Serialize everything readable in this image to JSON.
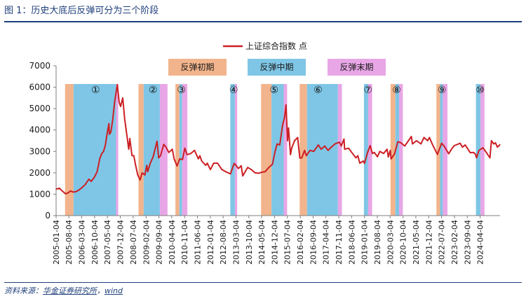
{
  "figure_title": "图 1：历史大底后反弹可分为三个阶段",
  "source": {
    "label": "资料来源：",
    "link1": "华金证券研究所",
    "sep": "，",
    "link2": "wind"
  },
  "colors": {
    "line": "#cc1f24",
    "early": "#f2b48c",
    "mid": "#7fc6e6",
    "late": "#e8a6e6",
    "axis": "#7f7f7f",
    "text": "#1a1a1a"
  },
  "chart_data": {
    "type": "line",
    "title": "",
    "xlabel": "",
    "ylabel": "",
    "ylim": [
      0,
      7000
    ],
    "yticks": [
      0,
      1000,
      2000,
      3000,
      4000,
      5000,
      6000,
      7000
    ],
    "xlim": [
      "2005-01-04",
      "2025-02-28"
    ],
    "x_tick_labels": [
      "2005-01-04",
      "2005-08-04",
      "2006-03-04",
      "2006-10-04",
      "2007-05-04",
      "2007-12-04",
      "2008-07-04",
      "2009-02-04",
      "2009-09-04",
      "2010-04-04",
      "2010-11-04",
      "2011-06-04",
      "2012-01-04",
      "2012-08-04",
      "2013-03-04",
      "2013-10-04",
      "2014-05-04",
      "2014-12-04",
      "2015-07-04",
      "2016-02-04",
      "2016-09-04",
      "2017-04-04",
      "2017-11-04",
      "2018-06-04",
      "2019-01-04",
      "2019-08-04",
      "2020-03-04",
      "2020-10-04",
      "2021-05-04",
      "2021-12-04",
      "2022-07-04",
      "2023-02-04",
      "2023-09-04",
      "2024-04-04"
    ],
    "legend": {
      "position": "top-center",
      "series_label": "上证综合指数 点",
      "phase_labels": [
        "反弹初期",
        "反弹中期",
        "反弹末期"
      ]
    },
    "series": [
      {
        "name": "上证综合指数 点",
        "points": [
          [
            "2005-01-04",
            1240
          ],
          [
            "2005-03-01",
            1280
          ],
          [
            "2005-04-15",
            1150
          ],
          [
            "2005-06-06",
            1020
          ],
          [
            "2005-07-15",
            1050
          ],
          [
            "2005-09-01",
            1150
          ],
          [
            "2005-10-15",
            1100
          ],
          [
            "2005-12-01",
            1120
          ],
          [
            "2006-01-10",
            1180
          ],
          [
            "2006-03-01",
            1290
          ],
          [
            "2006-05-01",
            1450
          ],
          [
            "2006-07-01",
            1700
          ],
          [
            "2006-08-10",
            1600
          ],
          [
            "2006-10-01",
            1800
          ],
          [
            "2006-11-15",
            2050
          ],
          [
            "2006-12-31",
            2680
          ],
          [
            "2007-02-01",
            2900
          ],
          [
            "2007-03-01",
            3000
          ],
          [
            "2007-04-01",
            3300
          ],
          [
            "2007-05-01",
            3850
          ],
          [
            "2007-05-29",
            4300
          ],
          [
            "2007-06-05",
            3800
          ],
          [
            "2007-07-01",
            3900
          ],
          [
            "2007-08-01",
            4500
          ],
          [
            "2007-09-01",
            5300
          ],
          [
            "2007-10-16",
            6124
          ],
          [
            "2007-11-15",
            5300
          ],
          [
            "2007-12-10",
            5100
          ],
          [
            "2008-01-14",
            5500
          ],
          [
            "2008-02-15",
            4500
          ],
          [
            "2008-03-15",
            3900
          ],
          [
            "2008-04-22",
            3100
          ],
          [
            "2008-05-10",
            3600
          ],
          [
            "2008-06-15",
            2800
          ],
          [
            "2008-07-15",
            2800
          ],
          [
            "2008-08-15",
            2350
          ],
          [
            "2008-09-18",
            1900
          ],
          [
            "2008-10-28",
            1665
          ],
          [
            "2008-12-01",
            2000
          ],
          [
            "2009-01-15",
            1900
          ],
          [
            "2009-02-15",
            2350
          ],
          [
            "2009-03-03",
            2050
          ],
          [
            "2009-04-15",
            2450
          ],
          [
            "2009-06-01",
            2750
          ],
          [
            "2009-08-04",
            3478
          ],
          [
            "2009-08-31",
            2700
          ],
          [
            "2009-10-01",
            2800
          ],
          [
            "2009-11-24",
            3330
          ],
          [
            "2010-01-01",
            3200
          ],
          [
            "2010-02-15",
            2950
          ],
          [
            "2010-04-15",
            3100
          ],
          [
            "2010-05-15",
            2650
          ],
          [
            "2010-07-02",
            2320
          ],
          [
            "2010-08-15",
            2650
          ],
          [
            "2010-09-30",
            2620
          ],
          [
            "2010-11-08",
            3150
          ],
          [
            "2010-12-15",
            2850
          ],
          [
            "2011-02-15",
            2900
          ],
          [
            "2011-04-18",
            3050
          ],
          [
            "2011-06-20",
            2650
          ],
          [
            "2011-07-15",
            2800
          ],
          [
            "2011-08-15",
            2550
          ],
          [
            "2011-10-20",
            2350
          ],
          [
            "2011-11-15",
            2450
          ],
          [
            "2012-01-06",
            2150
          ],
          [
            "2012-03-01",
            2450
          ],
          [
            "2012-05-04",
            2450
          ],
          [
            "2012-07-15",
            2150
          ],
          [
            "2012-09-15",
            2050
          ],
          [
            "2012-12-03",
            1950
          ],
          [
            "2013-01-15",
            2300
          ],
          [
            "2013-02-06",
            2440
          ],
          [
            "2013-04-15",
            2200
          ],
          [
            "2013-05-30",
            2330
          ],
          [
            "2013-06-25",
            1850
          ],
          [
            "2013-08-15",
            2100
          ],
          [
            "2013-09-15",
            2250
          ],
          [
            "2013-11-15",
            2150
          ],
          [
            "2014-01-15",
            2000
          ],
          [
            "2014-03-12",
            1980
          ],
          [
            "2014-05-15",
            2030
          ],
          [
            "2014-07-01",
            2050
          ],
          [
            "2014-09-01",
            2250
          ],
          [
            "2014-10-31",
            2400
          ],
          [
            "2014-12-10",
            2950
          ],
          [
            "2015-01-15",
            3350
          ],
          [
            "2015-03-01",
            3300
          ],
          [
            "2015-04-15",
            4200
          ],
          [
            "2015-05-20",
            4600
          ],
          [
            "2015-06-12",
            5178
          ],
          [
            "2015-07-08",
            3500
          ],
          [
            "2015-07-24",
            4100
          ],
          [
            "2015-08-26",
            2850
          ],
          [
            "2015-09-15",
            3150
          ],
          [
            "2015-11-01",
            3500
          ],
          [
            "2015-12-22",
            3650
          ],
          [
            "2016-01-28",
            2690
          ],
          [
            "2016-02-29",
            2700
          ],
          [
            "2016-04-15",
            3050
          ],
          [
            "2016-05-15",
            2800
          ],
          [
            "2016-07-15",
            3050
          ],
          [
            "2016-09-15",
            3000
          ],
          [
            "2016-11-29",
            3300
          ],
          [
            "2017-01-15",
            3100
          ],
          [
            "2017-03-15",
            3250
          ],
          [
            "2017-05-10",
            3050
          ],
          [
            "2017-07-01",
            3200
          ],
          [
            "2017-09-01",
            3350
          ],
          [
            "2017-11-14",
            3430
          ],
          [
            "2017-12-15",
            3250
          ],
          [
            "2018-01-29",
            3580
          ],
          [
            "2018-02-09",
            3100
          ],
          [
            "2018-04-15",
            3150
          ],
          [
            "2018-06-20",
            2900
          ],
          [
            "2018-08-15",
            2700
          ],
          [
            "2018-09-15",
            2800
          ],
          [
            "2018-10-18",
            2450
          ],
          [
            "2018-12-15",
            2550
          ],
          [
            "2019-01-04",
            2440
          ],
          [
            "2019-02-25",
            2960
          ],
          [
            "2019-04-08",
            3270
          ],
          [
            "2019-05-15",
            2900
          ],
          [
            "2019-06-15",
            2950
          ],
          [
            "2019-08-06",
            2750
          ],
          [
            "2019-09-15",
            3000
          ],
          [
            "2019-11-15",
            2900
          ],
          [
            "2020-01-13",
            3100
          ],
          [
            "2020-02-03",
            2740
          ],
          [
            "2020-03-06",
            3050
          ],
          [
            "2020-03-19",
            2650
          ],
          [
            "2020-05-15",
            2880
          ],
          [
            "2020-07-09",
            3450
          ],
          [
            "2020-09-01",
            3400
          ],
          [
            "2020-11-01",
            3250
          ],
          [
            "2021-01-01",
            3500
          ],
          [
            "2021-02-18",
            3700
          ],
          [
            "2021-03-09",
            3350
          ],
          [
            "2021-05-15",
            3500
          ],
          [
            "2021-07-28",
            3350
          ],
          [
            "2021-09-15",
            3650
          ],
          [
            "2021-11-15",
            3500
          ],
          [
            "2021-12-15",
            3650
          ],
          [
            "2022-01-28",
            3360
          ],
          [
            "2022-03-15",
            3100
          ],
          [
            "2022-04-26",
            2860
          ],
          [
            "2022-07-05",
            3380
          ],
          [
            "2022-08-15",
            3250
          ],
          [
            "2022-10-31",
            2890
          ],
          [
            "2022-12-15",
            3100
          ],
          [
            "2023-01-31",
            3270
          ],
          [
            "2023-05-09",
            3380
          ],
          [
            "2023-06-15",
            3200
          ],
          [
            "2023-07-31",
            3300
          ],
          [
            "2023-10-23",
            2940
          ],
          [
            "2023-12-15",
            2950
          ],
          [
            "2024-01-15",
            2880
          ],
          [
            "2024-02-05",
            2700
          ],
          [
            "2024-03-15",
            3050
          ],
          [
            "2024-05-20",
            3170
          ],
          [
            "2024-07-15",
            2950
          ],
          [
            "2024-09-13",
            2700
          ],
          [
            "2024-10-08",
            3500
          ],
          [
            "2024-11-15",
            3350
          ],
          [
            "2024-12-15",
            3400
          ],
          [
            "2025-01-15",
            3200
          ],
          [
            "2025-02-28",
            3320
          ]
        ]
      }
    ],
    "phases": [
      {
        "marker": "①",
        "early": [
          "2005-06-01",
          "2005-10-20"
        ],
        "mid": [
          "2005-10-20",
          "2007-09-25"
        ],
        "late": [
          "2007-09-25",
          "2007-10-31"
        ]
      },
      {
        "marker": "②",
        "early": [
          "2008-10-01",
          "2008-12-25"
        ],
        "mid": [
          "2008-12-25",
          "2009-09-20"
        ],
        "late": [
          "2009-09-20",
          "2010-01-25"
        ]
      },
      {
        "marker": "③",
        "early": [
          "2010-06-05",
          "2010-08-10"
        ],
        "mid": [
          "2010-08-10",
          "2010-09-25"
        ],
        "late": [
          "2010-09-25",
          "2010-12-20"
        ]
      },
      {
        "marker": "④",
        "early": null,
        "mid": [
          "2012-12-01",
          "2013-02-15"
        ],
        "late": [
          "2013-02-15",
          "2013-03-25"
        ]
      },
      {
        "marker": "⑤",
        "early": [
          "2014-04-25",
          "2014-10-15"
        ],
        "mid": [
          "2014-10-15",
          "2015-05-05"
        ],
        "late": [
          "2015-05-05",
          "2015-07-01"
        ]
      },
      {
        "marker": "⑥",
        "early": [
          "2016-01-25",
          "2016-05-25"
        ],
        "mid": [
          "2016-05-25",
          "2017-10-20"
        ],
        "late": [
          "2017-10-20",
          "2017-12-25"
        ]
      },
      {
        "marker": "⑦",
        "early": null,
        "mid": [
          "2018-12-25",
          "2019-03-05"
        ],
        "late": [
          "2019-03-05",
          "2019-05-10"
        ]
      },
      {
        "marker": "⑧",
        "early": [
          "2020-03-10",
          "2020-05-30"
        ],
        "mid": [
          "2020-05-30",
          "2020-07-30"
        ],
        "late": [
          "2020-07-30",
          "2020-09-30"
        ]
      },
      {
        "marker": "⑨",
        "early": [
          "2022-04-10",
          "2022-06-10"
        ],
        "mid": [
          "2022-06-10",
          "2022-07-25"
        ],
        "late": [
          "2022-07-25",
          "2022-10-10"
        ]
      },
      {
        "marker": "⑩",
        "early": null,
        "mid": [
          "2024-01-25",
          "2024-04-10"
        ],
        "late": [
          "2024-04-10",
          "2024-06-15"
        ]
      }
    ]
  }
}
